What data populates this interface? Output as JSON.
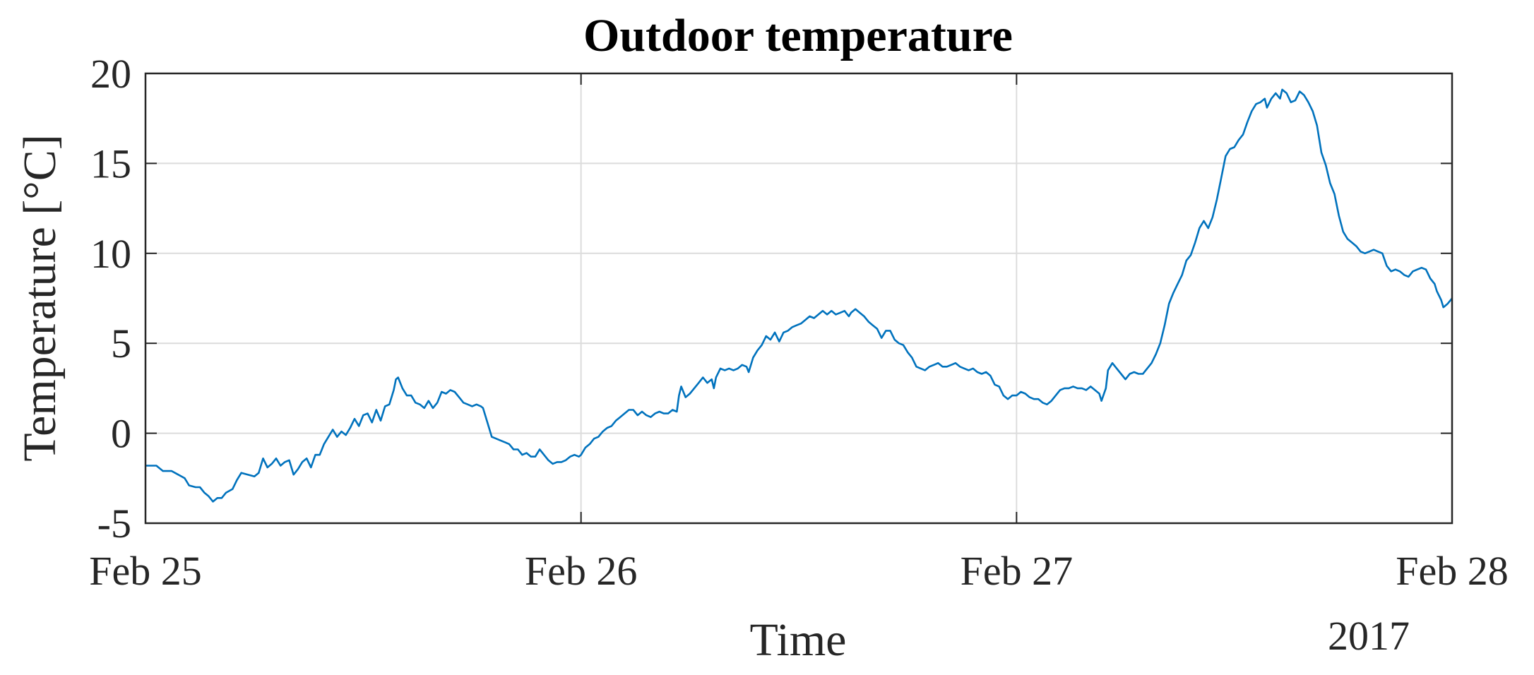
{
  "chart_data": {
    "type": "line",
    "title": "Outdoor temperature",
    "xlabel": "Time",
    "ylabel": "Temperature [°C]",
    "x_tick_labels": [
      "Feb 25",
      "Feb 26",
      "Feb 27",
      "Feb 28"
    ],
    "x_secondary_label": "2017",
    "y_tick_labels": [
      "-5",
      "0",
      "5",
      "10",
      "15",
      "20"
    ],
    "xlim": [
      "2017-02-25 00:00",
      "2017-02-28 00:00"
    ],
    "ylim": [
      -5,
      20
    ],
    "grid": true,
    "line_color": "#0072BD",
    "series": [
      {
        "x_unit": "days since Feb 25 00:00",
        "values": [
          [
            0.0,
            -1.8
          ],
          [
            0.025,
            -1.8
          ],
          [
            0.04,
            -2.1
          ],
          [
            0.06,
            -2.1
          ],
          [
            0.075,
            -2.3
          ],
          [
            0.09,
            -2.5
          ],
          [
            0.1,
            -2.9
          ],
          [
            0.115,
            -3.0
          ],
          [
            0.125,
            -3.0
          ],
          [
            0.135,
            -3.3
          ],
          [
            0.145,
            -3.5
          ],
          [
            0.155,
            -3.8
          ],
          [
            0.165,
            -3.6
          ],
          [
            0.175,
            -3.6
          ],
          [
            0.185,
            -3.3
          ],
          [
            0.2,
            -3.1
          ],
          [
            0.21,
            -2.6
          ],
          [
            0.22,
            -2.2
          ],
          [
            0.235,
            -2.3
          ],
          [
            0.25,
            -2.4
          ],
          [
            0.26,
            -2.2
          ],
          [
            0.27,
            -1.4
          ],
          [
            0.28,
            -1.9
          ],
          [
            0.29,
            -1.7
          ],
          [
            0.3,
            -1.4
          ],
          [
            0.31,
            -1.8
          ],
          [
            0.32,
            -1.6
          ],
          [
            0.33,
            -1.5
          ],
          [
            0.34,
            -2.3
          ],
          [
            0.35,
            -2.0
          ],
          [
            0.36,
            -1.6
          ],
          [
            0.37,
            -1.4
          ],
          [
            0.38,
            -1.9
          ],
          [
            0.39,
            -1.2
          ],
          [
            0.4,
            -1.2
          ],
          [
            0.41,
            -0.6
          ],
          [
            0.42,
            -0.2
          ],
          [
            0.43,
            0.2
          ],
          [
            0.44,
            -0.2
          ],
          [
            0.45,
            0.1
          ],
          [
            0.46,
            -0.1
          ],
          [
            0.47,
            0.3
          ],
          [
            0.48,
            0.8
          ],
          [
            0.49,
            0.4
          ],
          [
            0.5,
            1.0
          ],
          [
            0.51,
            1.1
          ],
          [
            0.52,
            0.6
          ],
          [
            0.53,
            1.3
          ],
          [
            0.54,
            0.7
          ],
          [
            0.55,
            1.5
          ],
          [
            0.56,
            1.6
          ],
          [
            0.57,
            2.4
          ],
          [
            0.575,
            3.0
          ],
          [
            0.58,
            3.1
          ],
          [
            0.59,
            2.5
          ],
          [
            0.6,
            2.1
          ],
          [
            0.61,
            2.1
          ],
          [
            0.62,
            1.7
          ],
          [
            0.63,
            1.6
          ],
          [
            0.64,
            1.4
          ],
          [
            0.65,
            1.8
          ],
          [
            0.66,
            1.4
          ],
          [
            0.67,
            1.7
          ],
          [
            0.68,
            2.3
          ],
          [
            0.69,
            2.2
          ],
          [
            0.7,
            2.4
          ],
          [
            0.71,
            2.3
          ],
          [
            0.72,
            2.0
          ],
          [
            0.73,
            1.7
          ],
          [
            0.74,
            1.6
          ],
          [
            0.75,
            1.5
          ],
          [
            0.76,
            1.6
          ],
          [
            0.77,
            1.5
          ],
          [
            0.775,
            1.4
          ],
          [
            0.785,
            0.6
          ],
          [
            0.795,
            -0.2
          ],
          [
            0.805,
            -0.3
          ],
          [
            0.815,
            -0.4
          ],
          [
            0.825,
            -0.5
          ],
          [
            0.835,
            -0.6
          ],
          [
            0.845,
            -0.9
          ],
          [
            0.855,
            -0.9
          ],
          [
            0.865,
            -1.2
          ],
          [
            0.875,
            -1.1
          ],
          [
            0.885,
            -1.3
          ],
          [
            0.895,
            -1.3
          ],
          [
            0.905,
            -0.9
          ],
          [
            0.915,
            -1.2
          ],
          [
            0.925,
            -1.5
          ],
          [
            0.935,
            -1.7
          ],
          [
            0.945,
            -1.6
          ],
          [
            0.955,
            -1.6
          ],
          [
            0.965,
            -1.5
          ],
          [
            0.975,
            -1.3
          ],
          [
            0.985,
            -1.2
          ],
          [
            0.995,
            -1.3
          ],
          [
            1.0,
            -1.2
          ],
          [
            1.01,
            -0.8
          ],
          [
            1.02,
            -0.6
          ],
          [
            1.03,
            -0.3
          ],
          [
            1.04,
            -0.2
          ],
          [
            1.05,
            0.1
          ],
          [
            1.06,
            0.3
          ],
          [
            1.07,
            0.4
          ],
          [
            1.08,
            0.7
          ],
          [
            1.09,
            0.9
          ],
          [
            1.1,
            1.1
          ],
          [
            1.11,
            1.3
          ],
          [
            1.12,
            1.3
          ],
          [
            1.13,
            1.0
          ],
          [
            1.14,
            1.2
          ],
          [
            1.15,
            1.0
          ],
          [
            1.16,
            0.9
          ],
          [
            1.17,
            1.1
          ],
          [
            1.18,
            1.2
          ],
          [
            1.19,
            1.1
          ],
          [
            1.2,
            1.1
          ],
          [
            1.21,
            1.3
          ],
          [
            1.22,
            1.2
          ],
          [
            1.225,
            2.1
          ],
          [
            1.23,
            2.6
          ],
          [
            1.24,
            2.0
          ],
          [
            1.25,
            2.2
          ],
          [
            1.26,
            2.5
          ],
          [
            1.27,
            2.8
          ],
          [
            1.28,
            3.1
          ],
          [
            1.29,
            2.8
          ],
          [
            1.3,
            3.0
          ],
          [
            1.305,
            2.5
          ],
          [
            1.31,
            3.1
          ],
          [
            1.32,
            3.6
          ],
          [
            1.33,
            3.5
          ],
          [
            1.34,
            3.6
          ],
          [
            1.35,
            3.5
          ],
          [
            1.36,
            3.6
          ],
          [
            1.37,
            3.8
          ],
          [
            1.38,
            3.7
          ],
          [
            1.385,
            3.4
          ],
          [
            1.395,
            4.2
          ],
          [
            1.405,
            4.6
          ],
          [
            1.415,
            4.9
          ],
          [
            1.425,
            5.4
          ],
          [
            1.435,
            5.2
          ],
          [
            1.445,
            5.6
          ],
          [
            1.455,
            5.1
          ],
          [
            1.465,
            5.6
          ],
          [
            1.475,
            5.7
          ],
          [
            1.485,
            5.9
          ],
          [
            1.495,
            6.0
          ],
          [
            1.505,
            6.1
          ],
          [
            1.515,
            6.3
          ],
          [
            1.525,
            6.5
          ],
          [
            1.535,
            6.4
          ],
          [
            1.545,
            6.6
          ],
          [
            1.555,
            6.8
          ],
          [
            1.565,
            6.6
          ],
          [
            1.575,
            6.8
          ],
          [
            1.585,
            6.6
          ],
          [
            1.595,
            6.7
          ],
          [
            1.605,
            6.8
          ],
          [
            1.615,
            6.5
          ],
          [
            1.62,
            6.7
          ],
          [
            1.63,
            6.9
          ],
          [
            1.64,
            6.7
          ],
          [
            1.65,
            6.5
          ],
          [
            1.66,
            6.2
          ],
          [
            1.67,
            6.0
          ],
          [
            1.68,
            5.8
          ],
          [
            1.69,
            5.3
          ],
          [
            1.7,
            5.7
          ],
          [
            1.71,
            5.7
          ],
          [
            1.72,
            5.2
          ],
          [
            1.73,
            5.0
          ],
          [
            1.74,
            4.9
          ],
          [
            1.75,
            4.5
          ],
          [
            1.76,
            4.2
          ],
          [
            1.77,
            3.7
          ],
          [
            1.78,
            3.6
          ],
          [
            1.79,
            3.5
          ],
          [
            1.8,
            3.7
          ],
          [
            1.81,
            3.8
          ],
          [
            1.82,
            3.9
          ],
          [
            1.83,
            3.7
          ],
          [
            1.84,
            3.7
          ],
          [
            1.85,
            3.8
          ],
          [
            1.86,
            3.9
          ],
          [
            1.87,
            3.7
          ],
          [
            1.88,
            3.6
          ],
          [
            1.89,
            3.5
          ],
          [
            1.9,
            3.6
          ],
          [
            1.91,
            3.4
          ],
          [
            1.92,
            3.3
          ],
          [
            1.93,
            3.4
          ],
          [
            1.94,
            3.2
          ],
          [
            1.95,
            2.7
          ],
          [
            1.96,
            2.6
          ],
          [
            1.97,
            2.1
          ],
          [
            1.98,
            1.9
          ],
          [
            1.99,
            2.1
          ],
          [
            2.0,
            2.1
          ],
          [
            2.01,
            2.3
          ],
          [
            2.02,
            2.2
          ],
          [
            2.03,
            2.0
          ],
          [
            2.04,
            1.9
          ],
          [
            2.05,
            1.9
          ],
          [
            2.06,
            1.7
          ],
          [
            2.07,
            1.6
          ],
          [
            2.08,
            1.8
          ],
          [
            2.09,
            2.1
          ],
          [
            2.1,
            2.4
          ],
          [
            2.11,
            2.5
          ],
          [
            2.12,
            2.5
          ],
          [
            2.13,
            2.6
          ],
          [
            2.14,
            2.5
          ],
          [
            2.15,
            2.5
          ],
          [
            2.16,
            2.4
          ],
          [
            2.17,
            2.6
          ],
          [
            2.18,
            2.4
          ],
          [
            2.19,
            2.2
          ],
          [
            2.195,
            1.8
          ],
          [
            2.205,
            2.5
          ],
          [
            2.21,
            3.5
          ],
          [
            2.22,
            3.9
          ],
          [
            2.23,
            3.6
          ],
          [
            2.24,
            3.3
          ],
          [
            2.25,
            3.0
          ],
          [
            2.26,
            3.3
          ],
          [
            2.27,
            3.4
          ],
          [
            2.28,
            3.3
          ],
          [
            2.29,
            3.3
          ],
          [
            2.3,
            3.6
          ],
          [
            2.31,
            3.9
          ],
          [
            2.32,
            4.4
          ],
          [
            2.33,
            5.0
          ],
          [
            2.34,
            6.0
          ],
          [
            2.35,
            7.2
          ],
          [
            2.36,
            7.8
          ],
          [
            2.37,
            8.3
          ],
          [
            2.38,
            8.8
          ],
          [
            2.39,
            9.6
          ],
          [
            2.4,
            9.9
          ],
          [
            2.41,
            10.6
          ],
          [
            2.42,
            11.4
          ],
          [
            2.43,
            11.8
          ],
          [
            2.44,
            11.4
          ],
          [
            2.45,
            12.0
          ],
          [
            2.46,
            13.0
          ],
          [
            2.47,
            14.2
          ],
          [
            2.48,
            15.4
          ],
          [
            2.49,
            15.8
          ],
          [
            2.5,
            15.9
          ],
          [
            2.51,
            16.3
          ],
          [
            2.52,
            16.6
          ],
          [
            2.53,
            17.3
          ],
          [
            2.54,
            17.9
          ],
          [
            2.55,
            18.3
          ],
          [
            2.56,
            18.4
          ],
          [
            2.57,
            18.6
          ],
          [
            2.575,
            18.1
          ],
          [
            2.585,
            18.6
          ],
          [
            2.595,
            18.9
          ],
          [
            2.605,
            18.6
          ],
          [
            2.61,
            19.1
          ],
          [
            2.62,
            18.9
          ],
          [
            2.63,
            18.4
          ],
          [
            2.64,
            18.5
          ],
          [
            2.65,
            19.0
          ],
          [
            2.66,
            18.8
          ],
          [
            2.67,
            18.4
          ],
          [
            2.68,
            17.9
          ],
          [
            2.69,
            17.1
          ],
          [
            2.7,
            15.6
          ],
          [
            2.71,
            14.9
          ],
          [
            2.72,
            13.9
          ],
          [
            2.73,
            13.3
          ],
          [
            2.74,
            12.1
          ],
          [
            2.75,
            11.2
          ],
          [
            2.76,
            10.8
          ],
          [
            2.77,
            10.6
          ],
          [
            2.78,
            10.4
          ],
          [
            2.79,
            10.1
          ],
          [
            2.8,
            10.0
          ],
          [
            2.81,
            10.1
          ],
          [
            2.82,
            10.2
          ],
          [
            2.83,
            10.1
          ],
          [
            2.84,
            10.0
          ],
          [
            2.85,
            9.3
          ],
          [
            2.86,
            9.0
          ],
          [
            2.87,
            9.1
          ],
          [
            2.88,
            9.0
          ],
          [
            2.89,
            8.8
          ],
          [
            2.9,
            8.7
          ],
          [
            2.91,
            9.0
          ],
          [
            2.92,
            9.1
          ],
          [
            2.93,
            9.2
          ],
          [
            2.94,
            9.1
          ],
          [
            2.95,
            8.6
          ],
          [
            2.96,
            8.3
          ],
          [
            2.965,
            7.9
          ],
          [
            2.975,
            7.4
          ],
          [
            2.98,
            7.0
          ],
          [
            2.99,
            7.2
          ],
          [
            3.0,
            7.5
          ]
        ]
      }
    ]
  }
}
